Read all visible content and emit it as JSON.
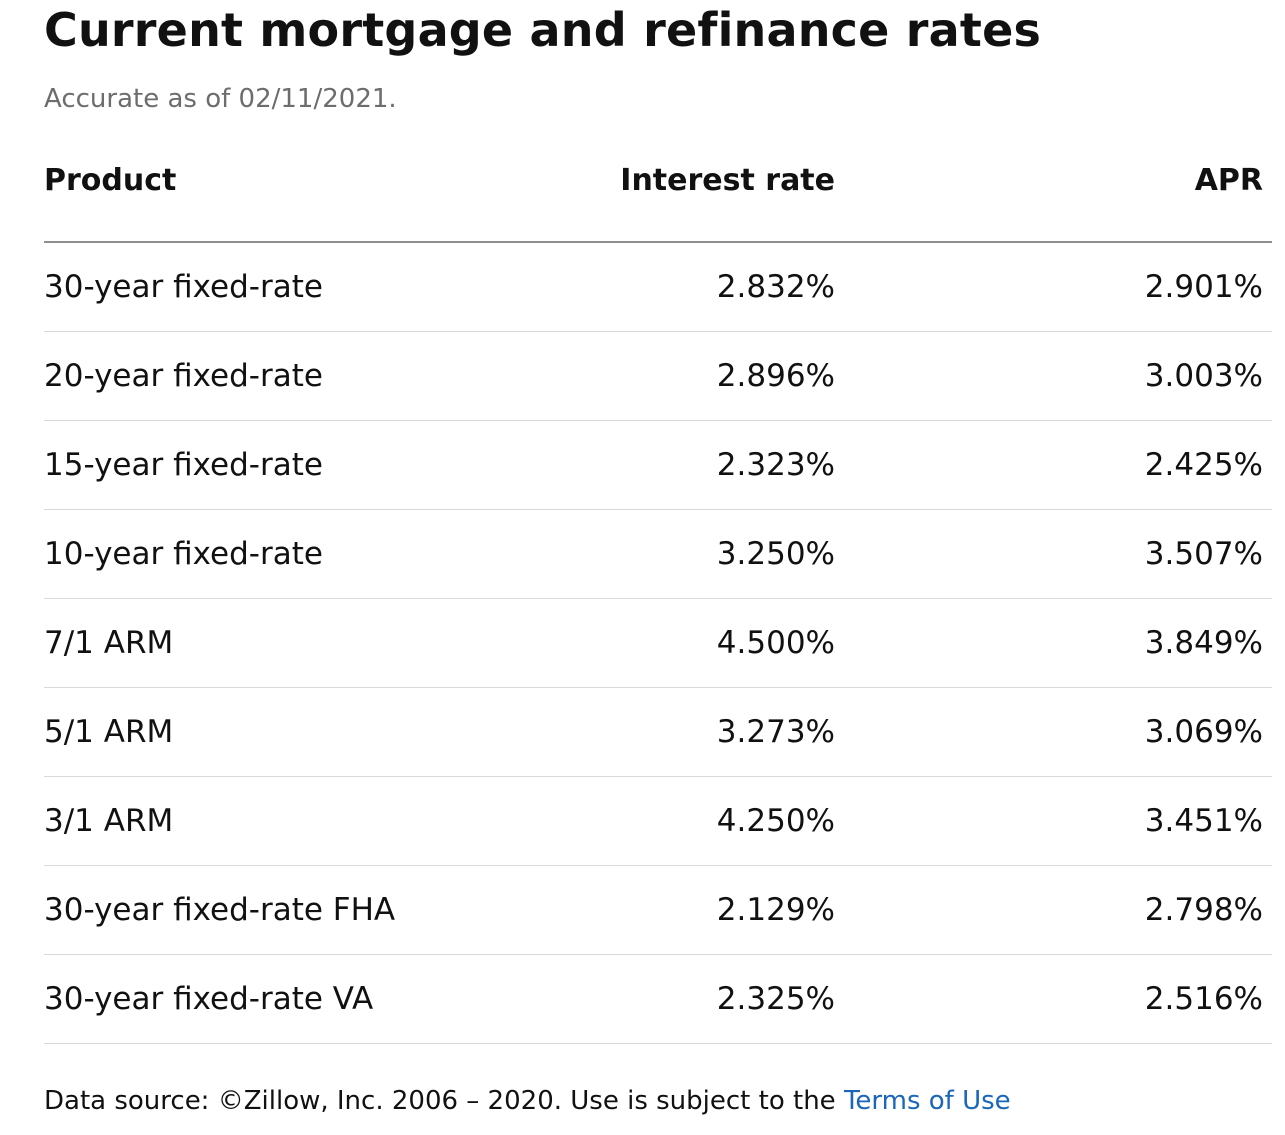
{
  "heading": {
    "title": "Current mortgage and refinance rates",
    "accurate_as_of": "Accurate as of 02/11/2021."
  },
  "table": {
    "columns": [
      "Product",
      "Interest rate",
      "APR"
    ],
    "rows": [
      {
        "product": "30-year fixed-rate",
        "interest_rate": "2.832%",
        "apr": "2.901%"
      },
      {
        "product": "20-year fixed-rate",
        "interest_rate": "2.896%",
        "apr": "3.003%"
      },
      {
        "product": "15-year fixed-rate",
        "interest_rate": "2.323%",
        "apr": "2.425%"
      },
      {
        "product": "10-year fixed-rate",
        "interest_rate": "3.250%",
        "apr": "3.507%"
      },
      {
        "product": "7/1 ARM",
        "interest_rate": "4.500%",
        "apr": "3.849%"
      },
      {
        "product": "5/1 ARM",
        "interest_rate": "3.273%",
        "apr": "3.069%"
      },
      {
        "product": "3/1 ARM",
        "interest_rate": "4.250%",
        "apr": "3.451%"
      },
      {
        "product": "30-year fixed-rate FHA",
        "interest_rate": "2.129%",
        "apr": "2.798%"
      },
      {
        "product": "30-year fixed-rate VA",
        "interest_rate": "2.325%",
        "apr": "2.516%"
      }
    ]
  },
  "footer": {
    "source_text": "Data source: ©Zillow, Inc. 2006 – 2020. Use is subject to the ",
    "terms_link": "Terms of Use"
  },
  "colors": {
    "text": "#111111",
    "muted": "#6d6d6d",
    "link": "#1a66b8",
    "header_rule": "#8e8e8e",
    "row_rule": "#d9d9d9"
  }
}
